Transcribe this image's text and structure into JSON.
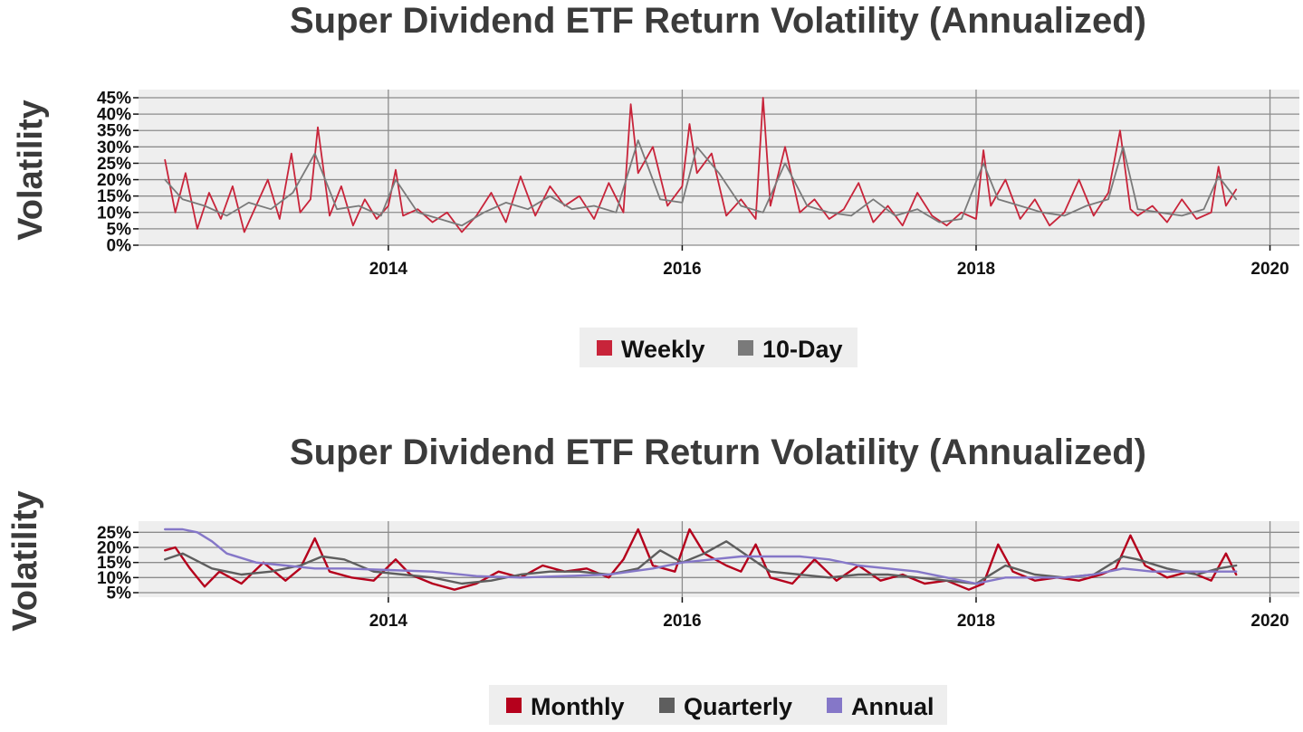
{
  "chart_data": [
    {
      "type": "line",
      "title": "Super Dividend ETF Return Volatility (Annualized)",
      "xlabel": "",
      "ylabel": "Volatility",
      "xlim": [
        2012.3,
        2020.2
      ],
      "ylim": [
        0,
        45
      ],
      "x_ticks": [
        "2014",
        "2016",
        "2018",
        "2020"
      ],
      "y_ticks": [
        "0%",
        "5%",
        "10%",
        "15%",
        "20%",
        "25%",
        "30%",
        "35%",
        "40%",
        "45%"
      ],
      "legend": {
        "placement": "bottom-center"
      },
      "series": [
        {
          "name": "Weekly",
          "color": "#c8243a",
          "x": [
            2012.48,
            2012.55,
            2012.62,
            2012.7,
            2012.78,
            2012.86,
            2012.94,
            2013.02,
            2013.1,
            2013.18,
            2013.26,
            2013.34,
            2013.4,
            2013.47,
            2013.52,
            2013.6,
            2013.68,
            2013.76,
            2013.84,
            2013.92,
            2014.0,
            2014.05,
            2014.1,
            2014.2,
            2014.3,
            2014.4,
            2014.5,
            2014.6,
            2014.7,
            2014.8,
            2014.9,
            2015.0,
            2015.1,
            2015.2,
            2015.3,
            2015.4,
            2015.5,
            2015.6,
            2015.65,
            2015.7,
            2015.8,
            2015.9,
            2016.0,
            2016.05,
            2016.1,
            2016.2,
            2016.3,
            2016.4,
            2016.5,
            2016.55,
            2016.6,
            2016.7,
            2016.8,
            2016.9,
            2017.0,
            2017.1,
            2017.2,
            2017.3,
            2017.4,
            2017.5,
            2017.6,
            2017.7,
            2017.8,
            2017.9,
            2018.0,
            2018.05,
            2018.1,
            2018.2,
            2018.3,
            2018.4,
            2018.5,
            2018.6,
            2018.7,
            2018.8,
            2018.9,
            2018.98,
            2019.05,
            2019.1,
            2019.2,
            2019.3,
            2019.4,
            2019.5,
            2019.6,
            2019.65,
            2019.7,
            2019.77
          ],
          "values": [
            26,
            10,
            22,
            5,
            16,
            8,
            18,
            4,
            12,
            20,
            8,
            28,
            10,
            14,
            36,
            9,
            18,
            6,
            14,
            8,
            12,
            23,
            9,
            11,
            7,
            10,
            4,
            9,
            16,
            7,
            21,
            9,
            18,
            12,
            15,
            8,
            19,
            10,
            43,
            22,
            30,
            12,
            18,
            37,
            22,
            28,
            9,
            14,
            8,
            45,
            12,
            30,
            10,
            14,
            8,
            11,
            19,
            7,
            12,
            6,
            16,
            9,
            6,
            10,
            8,
            29,
            12,
            20,
            8,
            14,
            6,
            10,
            20,
            9,
            16,
            35,
            11,
            9,
            12,
            7,
            14,
            8,
            10,
            24,
            12,
            17
          ]
        },
        {
          "name": "10-Day",
          "color": "#7a7a7a",
          "x": [
            2012.48,
            2012.6,
            2012.75,
            2012.9,
            2013.05,
            2013.2,
            2013.35,
            2013.5,
            2013.65,
            2013.8,
            2013.95,
            2014.05,
            2014.2,
            2014.35,
            2014.5,
            2014.65,
            2014.8,
            2014.95,
            2015.1,
            2015.25,
            2015.4,
            2015.55,
            2015.7,
            2015.85,
            2016.0,
            2016.1,
            2016.25,
            2016.4,
            2016.55,
            2016.7,
            2016.85,
            2017.0,
            2017.15,
            2017.3,
            2017.45,
            2017.6,
            2017.75,
            2017.9,
            2018.05,
            2018.15,
            2018.3,
            2018.45,
            2018.6,
            2018.75,
            2018.9,
            2019.0,
            2019.1,
            2019.25,
            2019.4,
            2019.55,
            2019.65,
            2019.77
          ],
          "values": [
            20,
            14,
            12,
            9,
            13,
            11,
            16,
            28,
            11,
            12,
            9,
            20,
            10,
            8,
            6,
            10,
            13,
            11,
            15,
            11,
            12,
            10,
            32,
            14,
            13,
            30,
            22,
            12,
            10,
            25,
            12,
            10,
            9,
            14,
            9,
            11,
            7,
            8,
            25,
            14,
            12,
            10,
            9,
            12,
            14,
            30,
            11,
            10,
            9,
            11,
            21,
            14
          ]
        }
      ]
    },
    {
      "type": "line",
      "title": "Super Dividend ETF Return Volatility (Annualized)",
      "xlabel": "",
      "ylabel": "Volatility",
      "xlim": [
        2012.3,
        2020.2
      ],
      "ylim": [
        3.5,
        26
      ],
      "x_ticks": [
        "2014",
        "2016",
        "2018",
        "2020"
      ],
      "y_ticks": [
        "5%",
        "10%",
        "15%",
        "20%",
        "25%"
      ],
      "legend": {
        "placement": "bottom-center"
      },
      "series": [
        {
          "name": "Monthly",
          "color": "#b5001c",
          "x": [
            2012.48,
            2012.55,
            2012.65,
            2012.75,
            2012.85,
            2013.0,
            2013.15,
            2013.3,
            2013.4,
            2013.5,
            2013.6,
            2013.75,
            2013.9,
            2014.05,
            2014.15,
            2014.3,
            2014.45,
            2014.6,
            2014.75,
            2014.9,
            2015.05,
            2015.2,
            2015.35,
            2015.5,
            2015.6,
            2015.7,
            2015.8,
            2015.95,
            2016.05,
            2016.15,
            2016.3,
            2016.4,
            2016.5,
            2016.6,
            2016.75,
            2016.9,
            2017.05,
            2017.2,
            2017.35,
            2017.5,
            2017.65,
            2017.8,
            2017.95,
            2018.05,
            2018.15,
            2018.25,
            2018.4,
            2018.55,
            2018.7,
            2018.85,
            2018.95,
            2019.05,
            2019.15,
            2019.3,
            2019.45,
            2019.6,
            2019.7,
            2019.77
          ],
          "values": [
            19,
            20,
            13,
            7,
            12,
            8,
            15,
            9,
            13,
            23,
            12,
            10,
            9,
            16,
            11,
            8,
            6,
            8,
            12,
            10,
            14,
            12,
            13,
            10,
            16,
            26,
            14,
            12,
            26,
            18,
            14,
            12,
            21,
            10,
            8,
            16,
            9,
            14,
            9,
            11,
            8,
            9,
            6,
            8,
            21,
            12,
            9,
            10,
            9,
            11,
            13,
            24,
            14,
            10,
            12,
            9,
            18,
            11
          ]
        },
        {
          "name": "Quarterly",
          "color": "#5e5e5e",
          "x": [
            2012.48,
            2012.6,
            2012.8,
            2013.0,
            2013.2,
            2013.4,
            2013.55,
            2013.7,
            2013.9,
            2014.1,
            2014.3,
            2014.5,
            2014.7,
            2014.9,
            2015.1,
            2015.3,
            2015.5,
            2015.7,
            2015.85,
            2016.0,
            2016.15,
            2016.3,
            2016.45,
            2016.6,
            2016.8,
            2017.0,
            2017.2,
            2017.4,
            2017.6,
            2017.8,
            2018.0,
            2018.2,
            2018.4,
            2018.6,
            2018.8,
            2019.0,
            2019.1,
            2019.3,
            2019.5,
            2019.65,
            2019.77
          ],
          "values": [
            16,
            18,
            13,
            11,
            12,
            14,
            17,
            16,
            12,
            11,
            10,
            8,
            9,
            11,
            12,
            12,
            11,
            13,
            19,
            15,
            18,
            22,
            17,
            12,
            11,
            10,
            11,
            11,
            10,
            9,
            8,
            14,
            11,
            10,
            11,
            17,
            16,
            13,
            11,
            13,
            14
          ]
        },
        {
          "name": "Annual",
          "color": "#8577c8",
          "x": [
            2012.48,
            2012.6,
            2012.7,
            2012.8,
            2012.9,
            2013.1,
            2013.3,
            2013.5,
            2013.7,
            2014.0,
            2014.3,
            2014.6,
            2014.9,
            2015.2,
            2015.5,
            2015.8,
            2016.0,
            2016.2,
            2016.4,
            2016.6,
            2016.8,
            2017.0,
            2017.2,
            2017.4,
            2017.6,
            2017.8,
            2018.0,
            2018.2,
            2018.4,
            2018.6,
            2018.8,
            2019.0,
            2019.2,
            2019.4,
            2019.6,
            2019.77
          ],
          "values": [
            26,
            26,
            25,
            22,
            18,
            15,
            14,
            13,
            13,
            12.5,
            12,
            10.5,
            10,
            10.5,
            11,
            13,
            15,
            16,
            17,
            17,
            17,
            16,
            14,
            13,
            12,
            10,
            8,
            10,
            10,
            10,
            11,
            13,
            12,
            12,
            12,
            12
          ]
        }
      ]
    }
  ]
}
